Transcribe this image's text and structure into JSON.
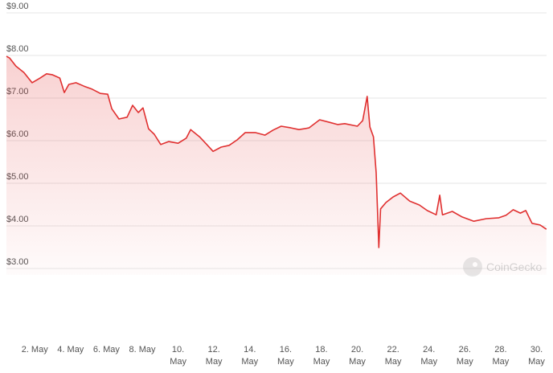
{
  "chart_data": {
    "type": "line",
    "watermark": "CoinGecko",
    "color": "#e03030",
    "grid": true,
    "x": [
      0.42,
      0.6,
      0.95,
      1.4,
      1.85,
      2.3,
      2.66,
      2.97,
      3.4,
      3.65,
      3.9,
      4.3,
      4.75,
      5.2,
      5.66,
      6.07,
      6.3,
      6.7,
      7.15,
      7.46,
      7.78,
      8.04,
      8.35,
      8.67,
      9.03,
      9.47,
      10.0,
      10.46,
      10.7,
      11.2,
      11.6,
      11.95,
      12.4,
      12.85,
      13.3,
      13.75,
      14.3,
      14.85,
      15.3,
      15.75,
      16.3,
      16.74,
      17.3,
      17.9,
      18.45,
      18.9,
      19.3,
      20.0,
      20.3,
      20.55,
      20.7,
      20.9,
      21.05,
      21.2,
      21.3,
      21.6,
      22.0,
      22.4,
      22.93,
      23.46,
      23.9,
      24.4,
      24.6,
      24.75,
      25.3,
      25.85,
      26.5,
      27.2,
      27.9,
      28.3,
      28.7,
      29.1,
      29.4,
      29.75,
      30.2,
      30.55
    ],
    "values": [
      7.98,
      7.94,
      7.75,
      7.6,
      7.36,
      7.47,
      7.57,
      7.55,
      7.47,
      7.13,
      7.32,
      7.36,
      7.28,
      7.21,
      7.11,
      7.09,
      6.75,
      6.51,
      6.55,
      6.83,
      6.66,
      6.77,
      6.28,
      6.15,
      5.91,
      5.98,
      5.94,
      6.06,
      6.26,
      6.09,
      5.91,
      5.75,
      5.85,
      5.89,
      6.02,
      6.19,
      6.19,
      6.13,
      6.25,
      6.34,
      6.3,
      6.26,
      6.3,
      6.49,
      6.43,
      6.38,
      6.4,
      6.34,
      6.47,
      7.04,
      6.32,
      6.09,
      5.25,
      3.49,
      4.4,
      4.55,
      4.68,
      4.77,
      4.58,
      4.49,
      4.36,
      4.26,
      4.72,
      4.26,
      4.34,
      4.21,
      4.11,
      4.17,
      4.19,
      4.25,
      4.38,
      4.3,
      4.36,
      4.06,
      4.02,
      3.92
    ],
    "xlim": [
      0.42,
      30.65
    ],
    "ylim": [
      3,
      9
    ],
    "yticks": [
      {
        "value": 3,
        "label": "$3.00"
      },
      {
        "value": 4,
        "label": "$4.00"
      },
      {
        "value": 5,
        "label": "$5.00"
      },
      {
        "value": 6,
        "label": "$6.00"
      },
      {
        "value": 7,
        "label": "$7.00"
      },
      {
        "value": 8,
        "label": "$8.00"
      },
      {
        "value": 9,
        "label": "$9.00"
      }
    ],
    "xticks": [
      {
        "value": 2,
        "label": "2. May"
      },
      {
        "value": 4,
        "label": "4. May"
      },
      {
        "value": 6,
        "label": "6. May"
      },
      {
        "value": 8,
        "label": "8. May"
      },
      {
        "value": 10,
        "label": "10.\nMay"
      },
      {
        "value": 12,
        "label": "12.\nMay"
      },
      {
        "value": 14,
        "label": "14.\nMay"
      },
      {
        "value": 16,
        "label": "16.\nMay"
      },
      {
        "value": 18,
        "label": "18.\nMay"
      },
      {
        "value": 20,
        "label": "20.\nMay"
      },
      {
        "value": 22,
        "label": "22.\nMay"
      },
      {
        "value": 24,
        "label": "24.\nMay"
      },
      {
        "value": 26,
        "label": "26.\nMay"
      },
      {
        "value": 28,
        "label": "28.\nMay"
      },
      {
        "value": 30,
        "label": "30.\nMay"
      }
    ]
  }
}
